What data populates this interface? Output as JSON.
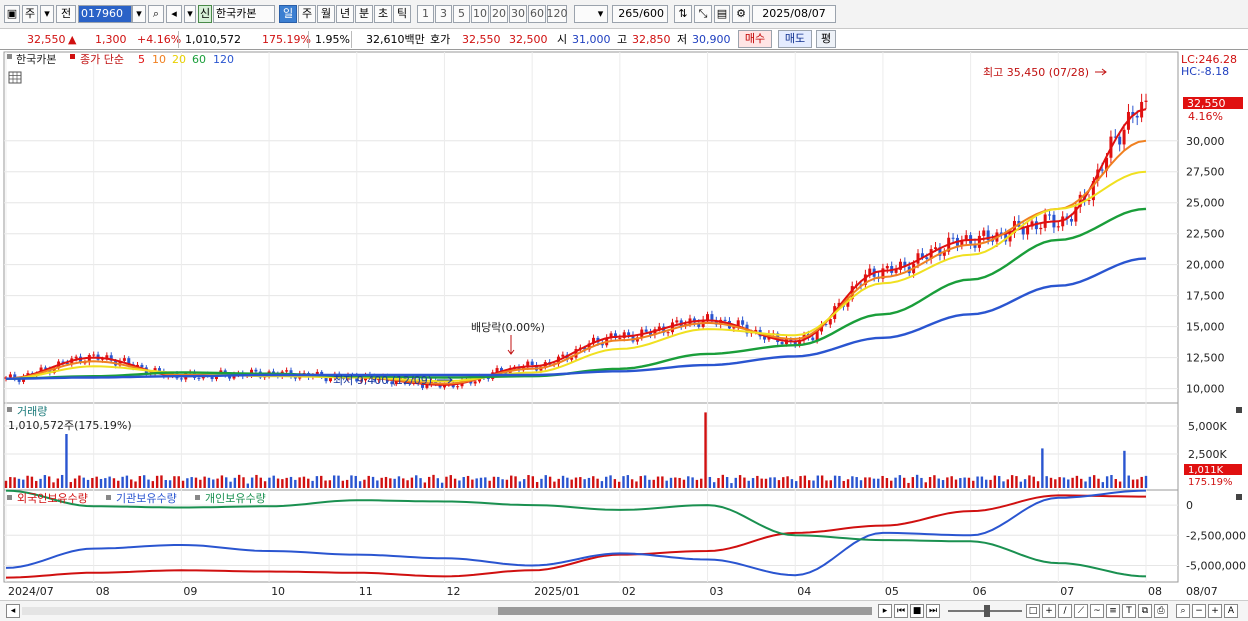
{
  "toolbar": {
    "period_label": "주",
    "prev_label": "전",
    "stock_code": "017960",
    "credit_badge": "신",
    "stock_name": "한국카본",
    "tabs": [
      "일",
      "주",
      "월",
      "년",
      "분",
      "초",
      "틱"
    ],
    "active_tab": "일",
    "intervals": [
      "1",
      "3",
      "5",
      "10",
      "20",
      "30",
      "60",
      "120"
    ],
    "count_value": "265",
    "count_max": "/600",
    "date": "2025/08/07"
  },
  "infobar": {
    "price": "32,550",
    "change": "1,300",
    "change_pct": "+4.16%",
    "volume": "1,010,572",
    "volume_ratio": "175.19%",
    "turnover": "1.95%",
    "amount": "32,610백만",
    "bid_label": "호가",
    "ask_price": "32,550",
    "bid_price": "32,500",
    "open_label": "시",
    "open": "31,000",
    "high_label": "고",
    "high": "32,850",
    "low_label": "저",
    "low": "30,900",
    "buy_button": "매수",
    "sell_button": "매도",
    "avg_button": "평"
  },
  "price_panel": {
    "legend_name": "한국카본",
    "legend_ma_label": "종가 단순",
    "ma_periods": [
      "5",
      "10",
      "20",
      "60",
      "120"
    ],
    "ma_colors": [
      "#e01010",
      "#f08020",
      "#f0e020",
      "#1a9e3a",
      "#2a55d0"
    ],
    "lc_label": "LC:246.28",
    "hc_label": "HC:-8.18",
    "current_price_label": "32,550",
    "current_pct_label": "4.16%",
    "high_annotation": "최고 35,450 (07/28)",
    "low_annotation": "최저 9,400 (12/09)",
    "dividend_annotation": "배당락(0.00%)",
    "y_ticks": [
      "30,000",
      "27,500",
      "25,000",
      "22,500",
      "20,000",
      "17,500",
      "15,000",
      "12,500",
      "10,000"
    ]
  },
  "volume_panel": {
    "title": "거래량",
    "value_label": "1,010,572주(175.19%)",
    "current_label": "1,011K",
    "current_pct_label": "175.19%",
    "y_ticks": [
      "5,000K",
      "2,500K"
    ]
  },
  "holdings_panel": {
    "legends": [
      "외국인보유수량",
      "기관보유수량",
      "개인보유수량"
    ],
    "legend_colors": [
      "#d01010",
      "#2a55d0",
      "#1a9050"
    ],
    "y_ticks": [
      "0",
      "-2,500,000",
      "-5,000,000"
    ]
  },
  "x_axis": {
    "labels": [
      "2024/07",
      "08",
      "09",
      "10",
      "11",
      "12",
      "2025/01",
      "02",
      "03",
      "04",
      "05",
      "06",
      "07",
      "08"
    ],
    "right_label": "08/07"
  },
  "chart_data": {
    "type": "line",
    "title": "한국카본",
    "x": [
      "2024/07",
      "08",
      "09",
      "10",
      "11",
      "12",
      "2025/01",
      "02",
      "03",
      "04",
      "05",
      "06",
      "07",
      "08"
    ],
    "series": [
      {
        "name": "종가 단순 5",
        "values": [
          10800,
          12500,
          11000,
          11200,
          10900,
          10300,
          11800,
          14200,
          15500,
          13800,
          19500,
          22000,
          23500,
          32550
        ]
      },
      {
        "name": "종가 단순 10",
        "values": [
          10800,
          12200,
          11100,
          11100,
          10900,
          10400,
          11600,
          13900,
          15300,
          14000,
          19000,
          21600,
          24500,
          30000
        ]
      },
      {
        "name": "종가 단순 20",
        "values": [
          10800,
          11800,
          11300,
          11000,
          10900,
          10600,
          11300,
          13200,
          14800,
          14300,
          18500,
          20800,
          24500,
          27500
        ]
      },
      {
        "name": "종가 단순 60",
        "values": [
          10800,
          11000,
          11300,
          11200,
          11000,
          10900,
          11000,
          11600,
          12800,
          13500,
          16000,
          18800,
          22000,
          24500
        ]
      },
      {
        "name": "종가 단순 120",
        "values": [
          10800,
          10900,
          11000,
          11100,
          11100,
          11100,
          11100,
          11400,
          11900,
          12600,
          14100,
          16000,
          18300,
          20500
        ]
      }
    ],
    "ylim": [
      9000,
      37000
    ],
    "annotations": [
      {
        "label": "최고 35,450 (07/28)",
        "x": "07/28",
        "y": 35450
      },
      {
        "label": "최저 9,400 (12/09)",
        "x": "12/09",
        "y": 9400
      },
      {
        "label": "배당락(0.00%)",
        "x": "2024/12",
        "y": 12000
      }
    ],
    "volume": {
      "last": 1010572,
      "ylim": [
        0,
        6500000
      ],
      "peaks": [
        4500000,
        6300000,
        3300000,
        3100000
      ]
    },
    "holdings": {
      "ylim": [
        -6200000,
        1000000
      ],
      "series": [
        {
          "name": "외국인보유수량",
          "values": [
            -6000000,
            -5600000,
            -5400000,
            -5500000,
            -5600000,
            -5900000,
            -5400000,
            -4100000,
            -3800000,
            -2300000,
            -1700000,
            -500000,
            800000,
            700000
          ]
        },
        {
          "name": "기관보유수량",
          "values": [
            -5200000,
            -3600000,
            -3300000,
            -3800000,
            -4100000,
            -4400000,
            -5000000,
            -4000000,
            -4500000,
            -5800000,
            -2300000,
            -2500000,
            600000,
            1200000
          ]
        },
        {
          "name": "개인보유수량",
          "values": [
            1200000,
            -100000,
            -200000,
            -100000,
            400000,
            300000,
            0,
            -400000,
            0,
            -2500000,
            -2900000,
            -3000000,
            -4800000,
            -5900000
          ]
        }
      ]
    }
  }
}
